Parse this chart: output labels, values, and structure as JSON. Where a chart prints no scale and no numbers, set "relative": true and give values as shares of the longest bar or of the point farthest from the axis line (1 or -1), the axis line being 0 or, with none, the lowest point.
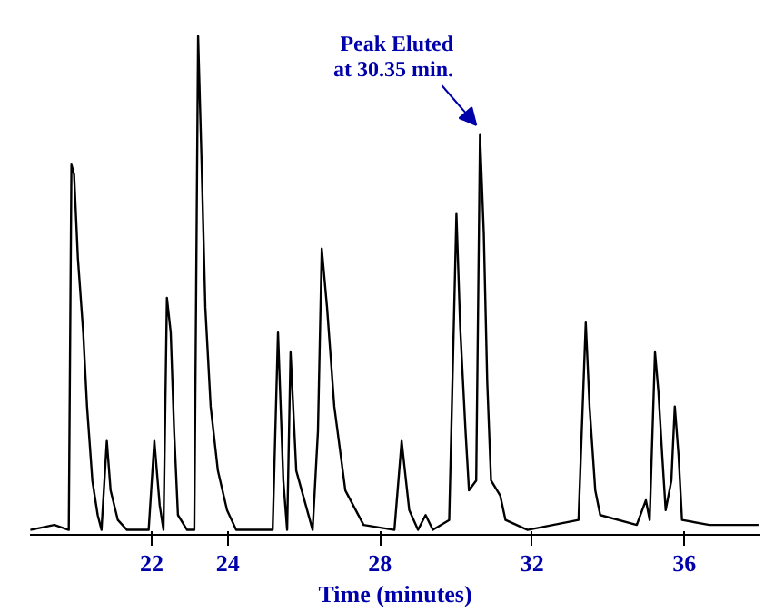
{
  "chart_data": {
    "type": "line",
    "relative": true,
    "xlabel": "Time (minutes)",
    "xlim": [
      18.8,
      38
    ],
    "xticks": [
      22,
      24,
      28,
      32,
      36
    ],
    "x": [
      18.81,
      19.44,
      19.82,
      19.89,
      19.96,
      20.06,
      20.2,
      20.3,
      20.44,
      20.58,
      20.68,
      20.82,
      20.92,
      21.11,
      21.35,
      21.92,
      22.07,
      22.21,
      22.31,
      22.4,
      22.5,
      22.59,
      22.69,
      22.93,
      23.12,
      23.22,
      23.31,
      23.41,
      23.55,
      23.74,
      23.98,
      24.22,
      25.18,
      25.32,
      25.46,
      25.56,
      25.65,
      25.8,
      26.23,
      26.37,
      26.47,
      26.61,
      26.8,
      27.09,
      27.57,
      28.38,
      28.57,
      28.77,
      29.0,
      29.2,
      29.39,
      29.82,
      30.01,
      30.11,
      30.25,
      30.34,
      30.53,
      30.63,
      30.73,
      30.82,
      30.92,
      31.16,
      31.3,
      31.88,
      33.22,
      33.41,
      33.51,
      33.66,
      33.79,
      34.75,
      34.99,
      35.09,
      35.23,
      35.32,
      35.42,
      35.51,
      35.66,
      35.75,
      35.85,
      35.94,
      36.66,
      37.95
    ],
    "series": [
      {
        "color": "#000000",
        "values": [
          0.0,
          0.01,
          0.0,
          0.74,
          0.72,
          0.55,
          0.4,
          0.25,
          0.1,
          0.03,
          0.0,
          0.18,
          0.08,
          0.02,
          0.0,
          0.0,
          0.18,
          0.05,
          0.0,
          0.47,
          0.4,
          0.2,
          0.03,
          0.0,
          0.0,
          1.0,
          0.75,
          0.45,
          0.25,
          0.12,
          0.04,
          0.0,
          0.0,
          0.4,
          0.1,
          0.0,
          0.36,
          0.12,
          0.0,
          0.2,
          0.57,
          0.45,
          0.25,
          0.08,
          0.01,
          0.0,
          0.18,
          0.04,
          0.0,
          0.03,
          0.0,
          0.02,
          0.64,
          0.41,
          0.2,
          0.08,
          0.1,
          0.8,
          0.6,
          0.3,
          0.1,
          0.07,
          0.02,
          0.0,
          0.02,
          0.42,
          0.25,
          0.08,
          0.03,
          0.01,
          0.06,
          0.02,
          0.36,
          0.28,
          0.15,
          0.04,
          0.1,
          0.25,
          0.15,
          0.02,
          0.01,
          0.01
        ]
      }
    ],
    "annotations": [
      {
        "text": "Peak Eluted\nat 30.35 min.",
        "x": 30.63,
        "y": 0.8
      }
    ]
  }
}
